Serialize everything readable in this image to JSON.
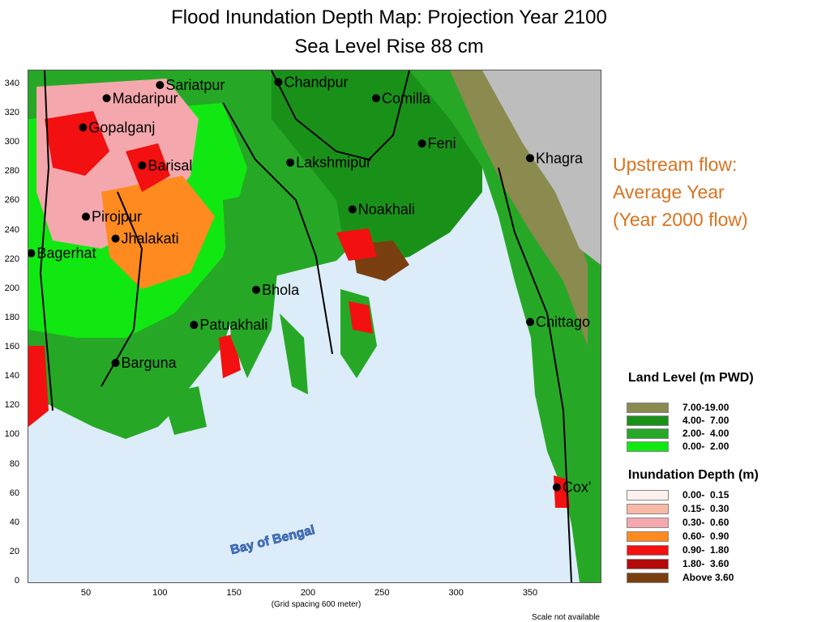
{
  "title_line1": "Flood Inundation Depth Map: Projection Year 2100",
  "title_line2": "Sea Level Rise 88 cm",
  "upstream": {
    "line1": "Upstream flow:",
    "line2": "Average Year",
    "line3": "(Year 2000 flow)"
  },
  "axis": {
    "y_ticks": [
      "340",
      "320",
      "300",
      "280",
      "260",
      "240",
      "220",
      "200",
      "180",
      "160",
      "140",
      "120",
      "100",
      "80",
      "60",
      "40",
      "20",
      "0"
    ],
    "x_ticks": [
      "50",
      "100",
      "150",
      "200",
      "250",
      "300",
      "350"
    ],
    "x_note": "(Grid spacing 600 meter)",
    "scale_note": "Scale not available"
  },
  "water_label": "Bay of Bengal",
  "cities": [
    {
      "name": "Sariatpur",
      "x": 100,
      "y": 340
    },
    {
      "name": "Chandpur",
      "x": 180,
      "y": 342
    },
    {
      "name": "Madaripur",
      "x": 64,
      "y": 331
    },
    {
      "name": "Comilla",
      "x": 246,
      "y": 331
    },
    {
      "name": "Gopalganj",
      "x": 48,
      "y": 311
    },
    {
      "name": "Feni",
      "x": 277,
      "y": 300
    },
    {
      "name": "Khagra",
      "x": 350,
      "y": 290
    },
    {
      "name": "Barisal",
      "x": 88,
      "y": 285
    },
    {
      "name": "Lakshmipur",
      "x": 188,
      "y": 287
    },
    {
      "name": "Noakhali",
      "x": 230,
      "y": 255
    },
    {
      "name": "Pirojpur",
      "x": 50,
      "y": 250
    },
    {
      "name": "Jhalakati",
      "x": 70,
      "y": 235
    },
    {
      "name": "Bagerhat",
      "x": 13,
      "y": 225
    },
    {
      "name": "Bhola",
      "x": 165,
      "y": 200
    },
    {
      "name": "Chittago",
      "x": 350,
      "y": 178
    },
    {
      "name": "Patuakhali",
      "x": 123,
      "y": 176
    },
    {
      "name": "Barguna",
      "x": 70,
      "y": 150
    },
    {
      "name": "Cox'",
      "x": 368,
      "y": 65
    }
  ],
  "land_legend": {
    "title": "Land Level (m PWD)",
    "items": [
      {
        "label": "7.00-19.00",
        "color": "#8b8a4f"
      },
      {
        "label": "4.00-  7.00",
        "color": "#199119"
      },
      {
        "label": "2.00-  4.00",
        "color": "#26a826"
      },
      {
        "label": "0.00-  2.00",
        "color": "#11e811"
      }
    ]
  },
  "inundation_legend": {
    "title": "Inundation Depth (m)",
    "items": [
      {
        "label": "0.00-  0.15",
        "color": "#fdf2ee"
      },
      {
        "label": "0.15-  0.30",
        "color": "#f9b9a4"
      },
      {
        "label": "0.30-  0.60",
        "color": "#f4a8ad"
      },
      {
        "label": "0.60-  0.90",
        "color": "#ff8a1f"
      },
      {
        "label": "0.90-  1.80",
        "color": "#f21010"
      },
      {
        "label": "1.80-  3.60",
        "color": "#b30a0a"
      },
      {
        "label": "Above 3.60",
        "color": "#7a3f10"
      }
    ]
  }
}
